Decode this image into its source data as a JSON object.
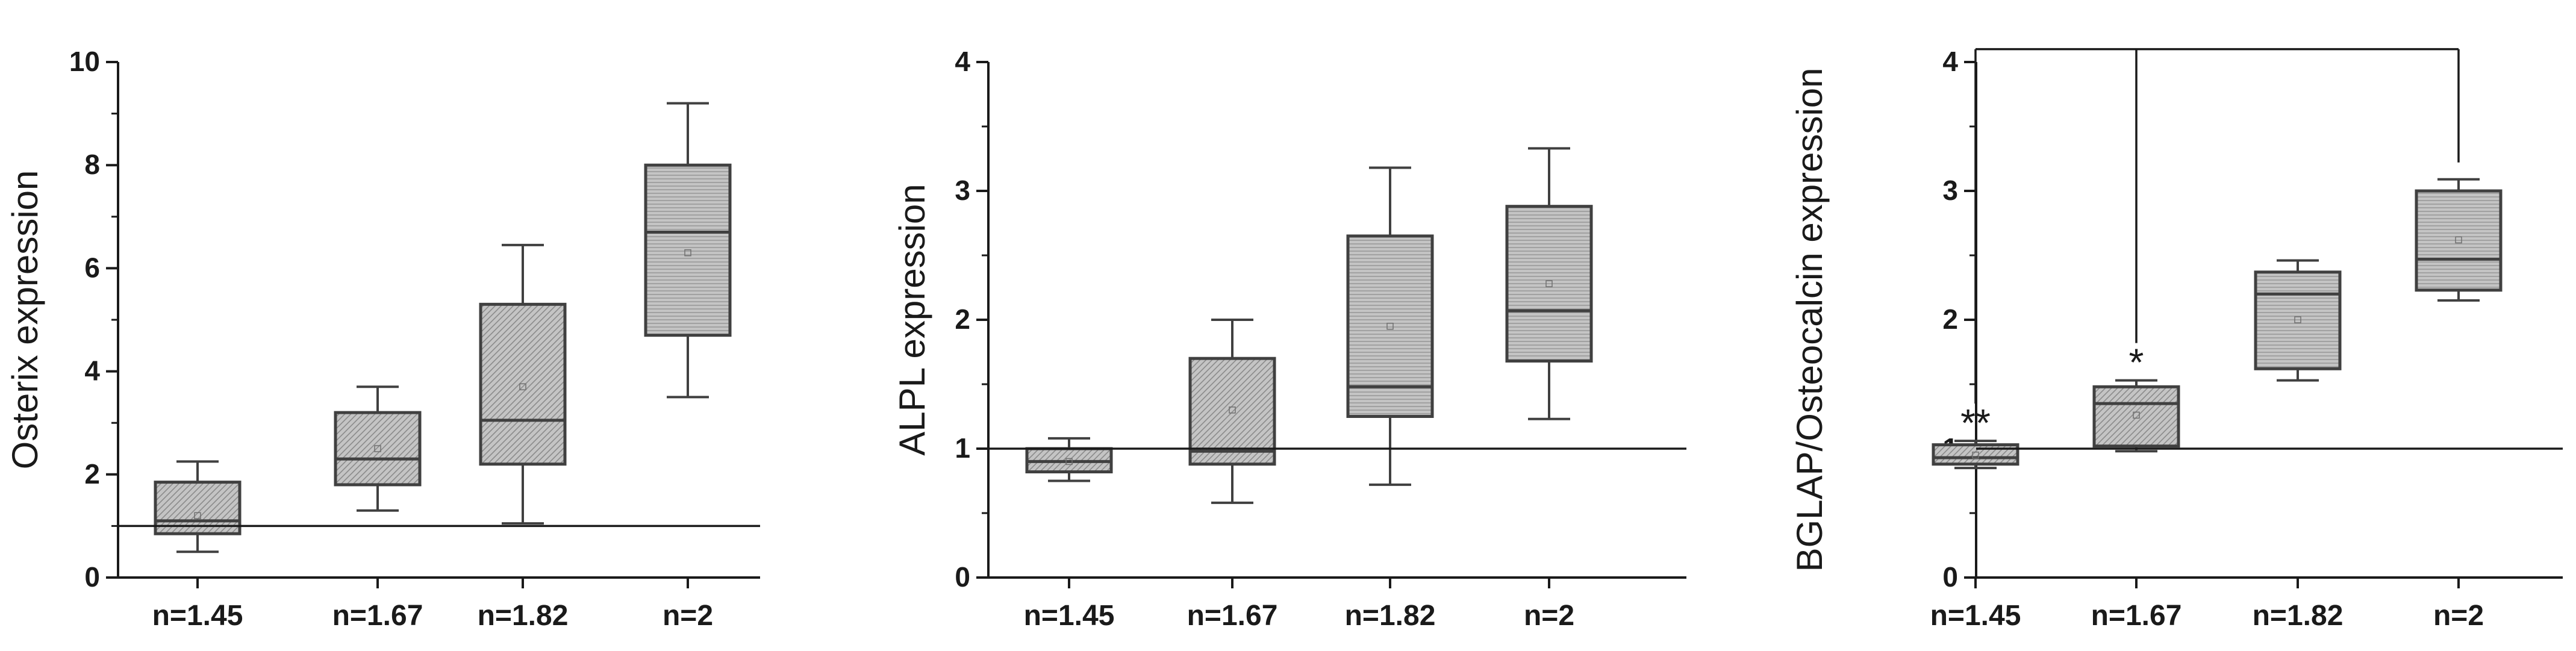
{
  "chart_data": [
    {
      "type": "box",
      "title": "",
      "xlabel": "",
      "ylabel": "Osterix expression",
      "categories": [
        "n=1.45",
        "n=1.67",
        "n=1.82",
        "n=2"
      ],
      "ylim": [
        0,
        10
      ],
      "yticks": [
        "0",
        "2",
        "4",
        "6",
        "8",
        "10"
      ],
      "reference_line": 1,
      "boxes": [
        {
          "whisker_low": 0.5,
          "q1": 0.85,
          "median": 1.1,
          "q3": 1.85,
          "whisker_high": 2.25,
          "mean": 1.2
        },
        {
          "whisker_low": 1.3,
          "q1": 1.8,
          "median": 2.3,
          "q3": 3.2,
          "whisker_high": 3.7,
          "mean": 2.5
        },
        {
          "whisker_low": 1.05,
          "q1": 2.2,
          "median": 3.05,
          "q3": 5.3,
          "whisker_high": 6.45,
          "mean": 3.7
        },
        {
          "whisker_low": 3.5,
          "q1": 4.7,
          "median": 6.7,
          "q3": 8.0,
          "whisker_high": 9.2,
          "mean": 6.3
        }
      ],
      "annotations": []
    },
    {
      "type": "box",
      "title": "",
      "xlabel": "",
      "ylabel": "ALPL expression",
      "categories": [
        "n=1.45",
        "n=1.67",
        "n=1.82",
        "n=2"
      ],
      "ylim": [
        0,
        4
      ],
      "yticks": [
        "0",
        "1",
        "2",
        "3",
        "4"
      ],
      "reference_line": 1,
      "boxes": [
        {
          "whisker_low": 0.75,
          "q1": 0.82,
          "median": 0.9,
          "q3": 1.0,
          "whisker_high": 1.08,
          "mean": 0.9
        },
        {
          "whisker_low": 0.58,
          "q1": 0.88,
          "median": 0.98,
          "q3": 1.7,
          "whisker_high": 2.0,
          "mean": 1.3
        },
        {
          "whisker_low": 0.72,
          "q1": 1.25,
          "median": 1.48,
          "q3": 2.65,
          "whisker_high": 3.18,
          "mean": 1.95
        },
        {
          "whisker_low": 1.23,
          "q1": 1.68,
          "median": 2.07,
          "q3": 2.88,
          "whisker_high": 3.33,
          "mean": 2.28
        }
      ],
      "annotations": []
    },
    {
      "type": "box",
      "title": "",
      "xlabel": "",
      "ylabel": "BGLAP/Osteocalcin expression",
      "categories": [
        "n=1.45",
        "n=1.67",
        "n=1.82",
        "n=2"
      ],
      "ylim": [
        0,
        4
      ],
      "yticks": [
        "0",
        "1",
        "2",
        "3",
        "4"
      ],
      "reference_line": 1,
      "boxes": [
        {
          "whisker_low": 0.85,
          "q1": 0.88,
          "median": 0.93,
          "q3": 1.03,
          "whisker_high": 1.06,
          "mean": 0.95
        },
        {
          "whisker_low": 0.98,
          "q1": 1.02,
          "median": 1.35,
          "q3": 1.48,
          "whisker_high": 1.53,
          "mean": 1.26
        },
        {
          "whisker_low": 1.53,
          "q1": 1.62,
          "median": 2.2,
          "q3": 2.37,
          "whisker_high": 2.46,
          "mean": 2.0
        },
        {
          "whisker_low": 2.15,
          "q1": 2.23,
          "median": 2.47,
          "q3": 3.0,
          "whisker_high": 3.09,
          "mean": 2.62
        }
      ],
      "annotations": [
        {
          "category": "n=1.45",
          "text": "**"
        },
        {
          "category": "n=1.67",
          "text": "*"
        }
      ],
      "comparison_bracket": {
        "from": [
          "n=1.45",
          "n=1.67"
        ],
        "to": "n=2",
        "level": 4.1
      }
    }
  ]
}
